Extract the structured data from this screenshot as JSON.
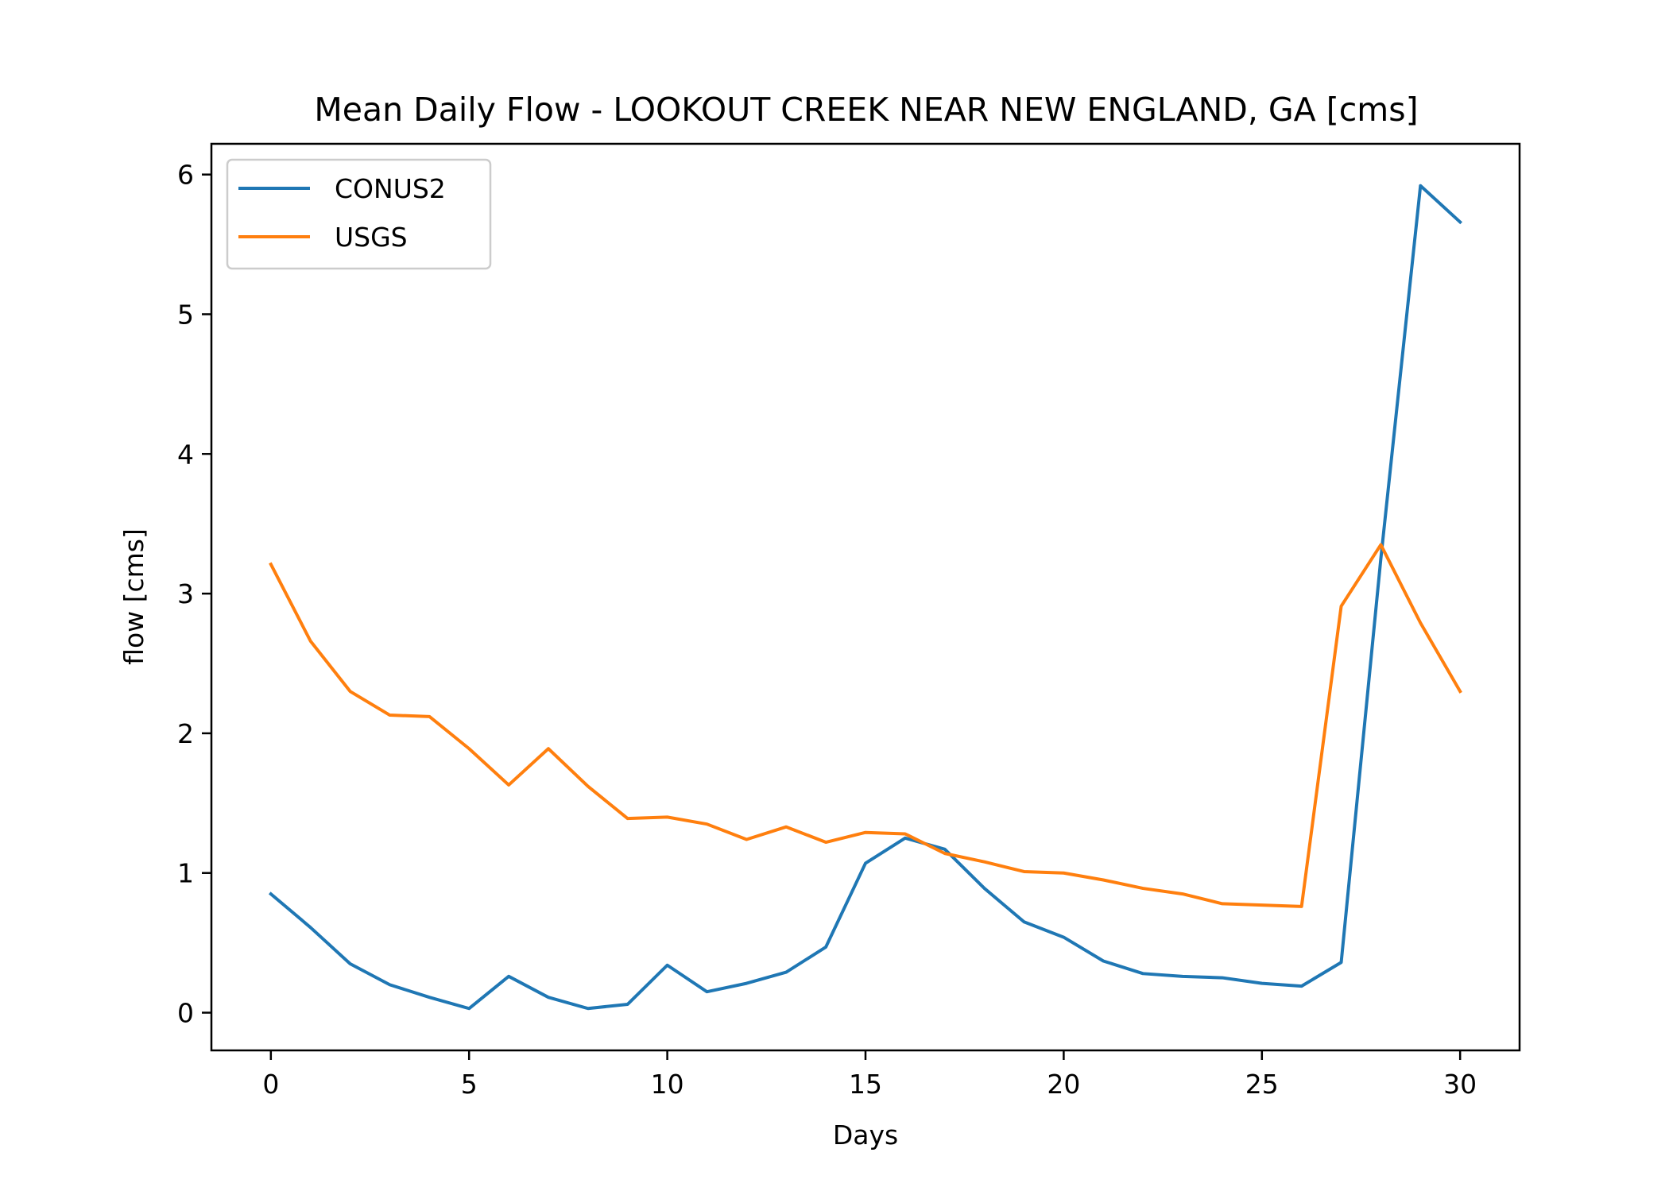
{
  "chart_data": {
    "type": "line",
    "title": "Mean Daily Flow - LOOKOUT CREEK NEAR NEW ENGLAND, GA [cms]",
    "xlabel": "Days",
    "ylabel": "flow [cms]",
    "xlim": [
      -1.5,
      31.5
    ],
    "ylim": [
      -0.27,
      6.22
    ],
    "xticks": [
      0,
      5,
      10,
      15,
      20,
      25,
      30
    ],
    "yticks": [
      0,
      1,
      2,
      3,
      4,
      5,
      6
    ],
    "grid": false,
    "legend_position": "upper-left",
    "x": [
      0,
      1,
      2,
      3,
      4,
      5,
      6,
      7,
      8,
      9,
      10,
      11,
      12,
      13,
      14,
      15,
      16,
      17,
      18,
      19,
      20,
      21,
      22,
      23,
      24,
      25,
      26,
      27,
      28,
      29,
      30
    ],
    "series": [
      {
        "name": "CONUS2",
        "color": "#1f77b4",
        "values": [
          0.85,
          0.61,
          0.35,
          0.2,
          0.11,
          0.03,
          0.26,
          0.11,
          0.03,
          0.06,
          0.34,
          0.15,
          0.21,
          0.29,
          0.47,
          1.07,
          1.25,
          1.17,
          0.89,
          0.65,
          0.54,
          0.37,
          0.28,
          0.26,
          0.25,
          0.21,
          0.19,
          0.36,
          3.25,
          5.92,
          5.66
        ]
      },
      {
        "name": "USGS",
        "color": "#ff7f0e",
        "values": [
          3.21,
          2.66,
          2.3,
          2.13,
          2.12,
          1.89,
          1.63,
          1.89,
          1.62,
          1.39,
          1.4,
          1.35,
          1.24,
          1.33,
          1.22,
          1.29,
          1.28,
          1.14,
          1.08,
          1.01,
          1.0,
          0.95,
          0.89,
          0.85,
          0.78,
          0.77,
          0.76,
          2.91,
          3.35,
          2.79,
          2.3
        ]
      }
    ]
  }
}
